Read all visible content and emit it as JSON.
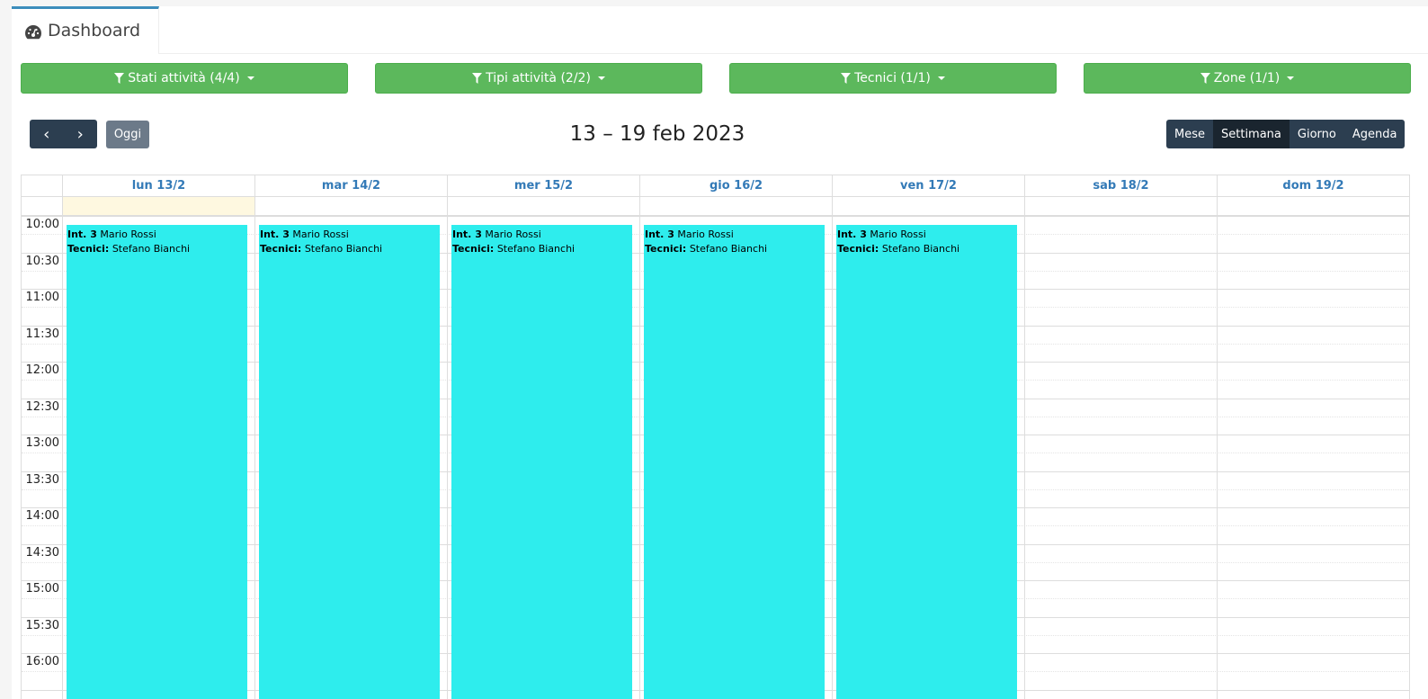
{
  "tab": {
    "label": "Dashboard",
    "icon": "dashboard-icon"
  },
  "filters": [
    {
      "label": "Stati attività (4/4)"
    },
    {
      "label": "Tipi attività (2/2)"
    },
    {
      "label": "Tecnici (1/1)"
    },
    {
      "label": "Zone (1/1)"
    }
  ],
  "toolbar": {
    "prev": "‹",
    "next": "›",
    "today": "Oggi",
    "title": "13 – 19 feb 2023",
    "views": [
      {
        "label": "Mese",
        "active": false
      },
      {
        "label": "Settimana",
        "active": true
      },
      {
        "label": "Giorno",
        "active": false
      },
      {
        "label": "Agenda",
        "active": false
      }
    ]
  },
  "days": [
    "lun 13/2",
    "mar 14/2",
    "mer 15/2",
    "gio 16/2",
    "ven 17/2",
    "sab 18/2",
    "dom 19/2"
  ],
  "today_index": 0,
  "times": [
    "10:00",
    "10:30",
    "11:00",
    "11:30",
    "12:00",
    "12:30",
    "13:00",
    "13:30",
    "14:00",
    "14:30",
    "15:00",
    "15:30",
    "16:00"
  ],
  "events": [
    {
      "day": 0,
      "id": "Int. 3",
      "client": "Mario Rossi",
      "tech_label": "Tecnici:",
      "tech": "Stefano Bianchi"
    },
    {
      "day": 1,
      "id": "Int. 3",
      "client": "Mario Rossi",
      "tech_label": "Tecnici:",
      "tech": "Stefano Bianchi"
    },
    {
      "day": 2,
      "id": "Int. 3",
      "client": "Mario Rossi",
      "tech_label": "Tecnici:",
      "tech": "Stefano Bianchi"
    },
    {
      "day": 3,
      "id": "Int. 3",
      "client": "Mario Rossi",
      "tech_label": "Tecnici:",
      "tech": "Stefano Bianchi"
    },
    {
      "day": 4,
      "id": "Int. 3",
      "client": "Mario Rossi",
      "tech_label": "Tecnici:",
      "tech": "Stefano Bianchi"
    }
  ],
  "colors": {
    "event": "#2eeded",
    "filter": "#5cb85c",
    "nav": "#2c3e50",
    "today_bg": "#fef8e0"
  }
}
